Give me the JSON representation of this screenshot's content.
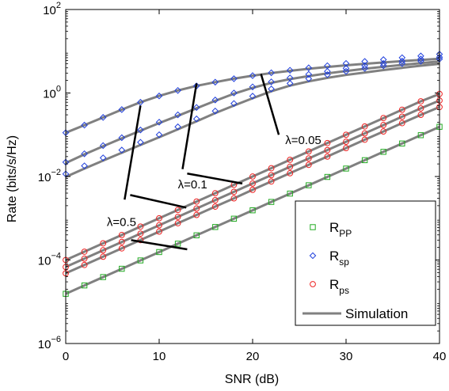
{
  "chart_data": {
    "type": "line",
    "xlabel": "SNR (dB)",
    "ylabel": "Rate (bits/s/Hz)",
    "xlim": [
      0,
      40
    ],
    "ylim": [
      1e-06,
      100
    ],
    "y_scale": "log",
    "grid": false,
    "legend_position": "bottom-right",
    "x_ticks": [
      "0",
      "10",
      "20",
      "30",
      "40"
    ],
    "y_ticks": [
      {
        "value": 1e-06,
        "base": "10",
        "exp": "−6"
      },
      {
        "value": 0.0001,
        "base": "10",
        "exp": "−4"
      },
      {
        "value": 0.01,
        "base": "10",
        "exp": "−2"
      },
      {
        "value": 1,
        "base": "10",
        "exp": "0"
      },
      {
        "value": 100,
        "base": "10",
        "exp": "2"
      }
    ],
    "legend": [
      {
        "label": "R",
        "sub": "PP",
        "marker": "square",
        "color": "#22aa22"
      },
      {
        "label": "R",
        "sub": "sp",
        "marker": "diamond",
        "color": "#1f3fdd"
      },
      {
        "label": "R",
        "sub": "ps",
        "marker": "circle",
        "color": "#ee2222"
      },
      {
        "label": "Simulation",
        "marker": "line",
        "color": "#808080"
      }
    ],
    "annotations": [
      {
        "text": "λ=0.05",
        "text_x": 23.5,
        "text_y": 0.06,
        "from": [
          22.8,
          0.1
        ],
        "to": [
          20.9,
          2.85
        ]
      },
      {
        "text": "λ=0.1",
        "text_x": 12.0,
        "text_y": 0.0052,
        "from": [
          12.5,
          0.015
        ],
        "to": [
          14.0,
          1.7
        ]
      },
      {
        "text": "λ=0.5",
        "text_x": 4.4,
        "text_y": 0.00065,
        "from": [
          6.3,
          0.0028
        ],
        "to": [
          8.0,
          0.5
        ]
      }
    ],
    "annotation_leaders": [
      {
        "from": [
          18.9,
          0.0068
        ],
        "to": [
          13.0,
          0.0118
        ]
      },
      {
        "from": [
          12.9,
          0.0018
        ],
        "to": [
          6.9,
          0.0036
        ]
      },
      {
        "from": [
          7.0,
          0.0003
        ],
        "to": [
          13.0,
          0.00018
        ]
      }
    ],
    "x": [
      0,
      2,
      4,
      6,
      8,
      10,
      12,
      14,
      16,
      18,
      20,
      22,
      24,
      26,
      28,
      30,
      32,
      34,
      36,
      38,
      40
    ],
    "series": [
      {
        "kind": "R_sp",
        "lambda": "0.05",
        "color": "#1f3fdd",
        "marker": "diamond",
        "values": [
          0.112,
          0.17,
          0.26,
          0.4,
          0.6,
          0.85,
          1.15,
          1.48,
          1.82,
          2.2,
          2.6,
          3.05,
          3.5,
          4.0,
          4.5,
          5.1,
          5.7,
          6.3,
          7.0,
          7.7,
          8.5
        ]
      },
      {
        "kind": "R_sp",
        "lambda": "0.1",
        "color": "#1f3fdd",
        "marker": "diamond",
        "values": [
          0.022,
          0.035,
          0.055,
          0.085,
          0.13,
          0.2,
          0.3,
          0.45,
          0.68,
          1.0,
          1.4,
          1.85,
          2.3,
          2.8,
          3.3,
          3.9,
          4.5,
          5.1,
          5.8,
          6.5,
          7.2
        ]
      },
      {
        "kind": "R_sp",
        "lambda": "0.5",
        "color": "#1f3fdd",
        "marker": "diamond",
        "values": [
          0.0115,
          0.018,
          0.028,
          0.043,
          0.066,
          0.1,
          0.155,
          0.24,
          0.37,
          0.56,
          0.84,
          1.25,
          1.7,
          2.2,
          2.75,
          3.3,
          3.9,
          4.5,
          5.1,
          5.8,
          6.5
        ]
      },
      {
        "kind": "R_ps",
        "lambda": "0.05",
        "color": "#ee2222",
        "marker": "circle",
        "values": [
          0.0001,
          0.000158,
          0.000251,
          0.000398,
          0.000631,
          0.001,
          0.00158,
          0.00251,
          0.00398,
          0.00631,
          0.01,
          0.0158,
          0.0251,
          0.0398,
          0.0631,
          0.1,
          0.158,
          0.251,
          0.398,
          0.631,
          0.95
        ]
      },
      {
        "kind": "R_ps",
        "lambda": "0.1",
        "color": "#ee2222",
        "marker": "circle",
        "values": [
          6.8e-05,
          0.000108,
          0.000171,
          0.000271,
          0.000429,
          0.00068,
          0.00108,
          0.00171,
          0.00271,
          0.00429,
          0.0068,
          0.0108,
          0.0171,
          0.0271,
          0.0429,
          0.068,
          0.108,
          0.171,
          0.271,
          0.429,
          0.66
        ]
      },
      {
        "kind": "R_ps",
        "lambda": "0.5",
        "color": "#ee2222",
        "marker": "circle",
        "values": [
          4.8e-05,
          7.6e-05,
          0.00012,
          0.00019,
          0.0003,
          0.00048,
          0.00076,
          0.0012,
          0.0019,
          0.003,
          0.0048,
          0.0076,
          0.012,
          0.019,
          0.03,
          0.048,
          0.076,
          0.12,
          0.19,
          0.3,
          0.46
        ]
      },
      {
        "kind": "R_PP",
        "lambda": "",
        "color": "#22aa22",
        "marker": "square",
        "values": [
          1.55e-05,
          2.46e-05,
          3.9e-05,
          6.17e-05,
          9.77e-05,
          0.000155,
          0.000246,
          0.00039,
          0.000617,
          0.000977,
          0.00155,
          0.00246,
          0.0039,
          0.00617,
          0.00977,
          0.0155,
          0.0246,
          0.039,
          0.0617,
          0.0977,
          0.155
        ]
      }
    ],
    "simulation": [
      {
        "values": [
          0.112,
          0.17,
          0.26,
          0.4,
          0.6,
          0.85,
          1.15,
          1.48,
          1.82,
          2.2,
          2.6,
          3.0,
          3.4,
          3.8,
          4.2,
          4.6,
          5.0,
          5.4,
          5.8,
          6.2,
          6.6
        ]
      },
      {
        "values": [
          0.021,
          0.034,
          0.053,
          0.082,
          0.125,
          0.19,
          0.285,
          0.43,
          0.65,
          0.96,
          1.33,
          1.75,
          2.15,
          2.55,
          2.95,
          3.35,
          3.8,
          4.25,
          4.7,
          5.2,
          5.7
        ]
      },
      {
        "values": [
          0.0098,
          0.0155,
          0.024,
          0.037,
          0.057,
          0.087,
          0.135,
          0.21,
          0.33,
          0.5,
          0.75,
          1.1,
          1.5,
          1.9,
          2.3,
          2.7,
          3.1,
          3.55,
          4.0,
          4.5,
          5.0
        ]
      },
      {
        "values": [
          0.0001,
          0.000158,
          0.000251,
          0.000398,
          0.000631,
          0.001,
          0.00158,
          0.00251,
          0.00398,
          0.00631,
          0.01,
          0.0158,
          0.0251,
          0.0398,
          0.0631,
          0.1,
          0.158,
          0.251,
          0.398,
          0.631,
          0.95
        ]
      },
      {
        "values": [
          6.8e-05,
          0.000108,
          0.000171,
          0.000271,
          0.000429,
          0.00068,
          0.00108,
          0.00171,
          0.00271,
          0.00429,
          0.0068,
          0.0108,
          0.0171,
          0.0271,
          0.0429,
          0.068,
          0.108,
          0.171,
          0.271,
          0.429,
          0.66
        ]
      },
      {
        "values": [
          4.8e-05,
          7.6e-05,
          0.00012,
          0.00019,
          0.0003,
          0.00048,
          0.00076,
          0.0012,
          0.0019,
          0.003,
          0.0048,
          0.0076,
          0.012,
          0.019,
          0.03,
          0.048,
          0.076,
          0.12,
          0.19,
          0.3,
          0.46
        ]
      },
      {
        "values": [
          1.55e-05,
          2.46e-05,
          3.9e-05,
          6.17e-05,
          9.77e-05,
          0.000155,
          0.000246,
          0.00039,
          0.000617,
          0.000977,
          0.00155,
          0.00246,
          0.0039,
          0.00617,
          0.00977,
          0.0155,
          0.0246,
          0.039,
          0.0617,
          0.0977,
          0.155
        ]
      }
    ],
    "simulation_color": "#808080"
  }
}
